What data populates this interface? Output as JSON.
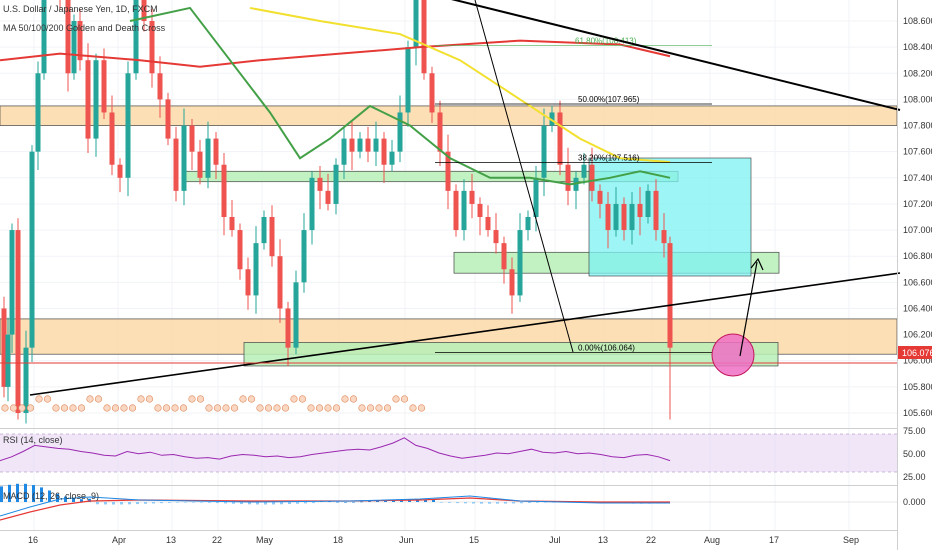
{
  "header": {
    "title": "U.S. Dollar / Japanese Yen, 1D, FXCM",
    "indicator": "MA 50/100/200 Golden and Death Cross"
  },
  "panes": {
    "rsi_label": "RSI (14, close)",
    "macd_label": "MACD (12, 26, close, 9)"
  },
  "chart_data": {
    "type": "candlestick",
    "symbol": "USDJPY",
    "timeframe": "1D",
    "price_axis": {
      "range": [
        105.5,
        108.75
      ],
      "ticks": [
        "108.600",
        "108.400",
        "108.200",
        "108.000",
        "107.800",
        "107.600",
        "107.400",
        "107.200",
        "107.000",
        "106.800",
        "106.600",
        "106.400",
        "106.200",
        "106.000",
        "105.800",
        "105.600"
      ],
      "last_price": "106.076"
    },
    "time_axis": [
      "16",
      "Apr",
      "13",
      "22",
      "May",
      "18",
      "Jun",
      "15",
      "Jul",
      "13",
      "22",
      "Aug",
      "17",
      "Sep"
    ],
    "fib_levels": [
      {
        "label": "61.80%(108.413)",
        "price": 108.413,
        "color": "#4caf50"
      },
      {
        "label": "50.00%(107.965)",
        "price": 107.965,
        "color": "#000000"
      },
      {
        "label": "38.20%(107.516)",
        "price": 107.516,
        "color": "#000000"
      },
      {
        "label": "0.00%(106.064)",
        "price": 106.064,
        "color": "#000000"
      }
    ],
    "zones": [
      {
        "name": "resistance-zone-upper",
        "from": 107.8,
        "to": 107.95,
        "color": "#fbd9a8"
      },
      {
        "name": "support-zone-lower",
        "from": 106.05,
        "to": 106.32,
        "color": "#fbd9a8"
      },
      {
        "name": "green-zone-mid",
        "from": 107.37,
        "to": 107.45,
        "color": "#b7f0b7"
      },
      {
        "name": "green-zone-low",
        "from": 106.67,
        "to": 106.83,
        "color": "#b7f0b7"
      },
      {
        "name": "green-zone-bottom",
        "from": 105.96,
        "to": 106.14,
        "color": "#b7f0b7"
      }
    ],
    "rsi_axis": [
      "75.00",
      "50.00",
      "25.00"
    ],
    "macd_axis": [
      "0.000"
    ]
  },
  "colors": {
    "up": "#26a69a",
    "down": "#ef5350",
    "ma50": "#43a047",
    "ma100": "#f2e02e",
    "ma200": "#e53935",
    "rsi": "#9c27b0"
  }
}
